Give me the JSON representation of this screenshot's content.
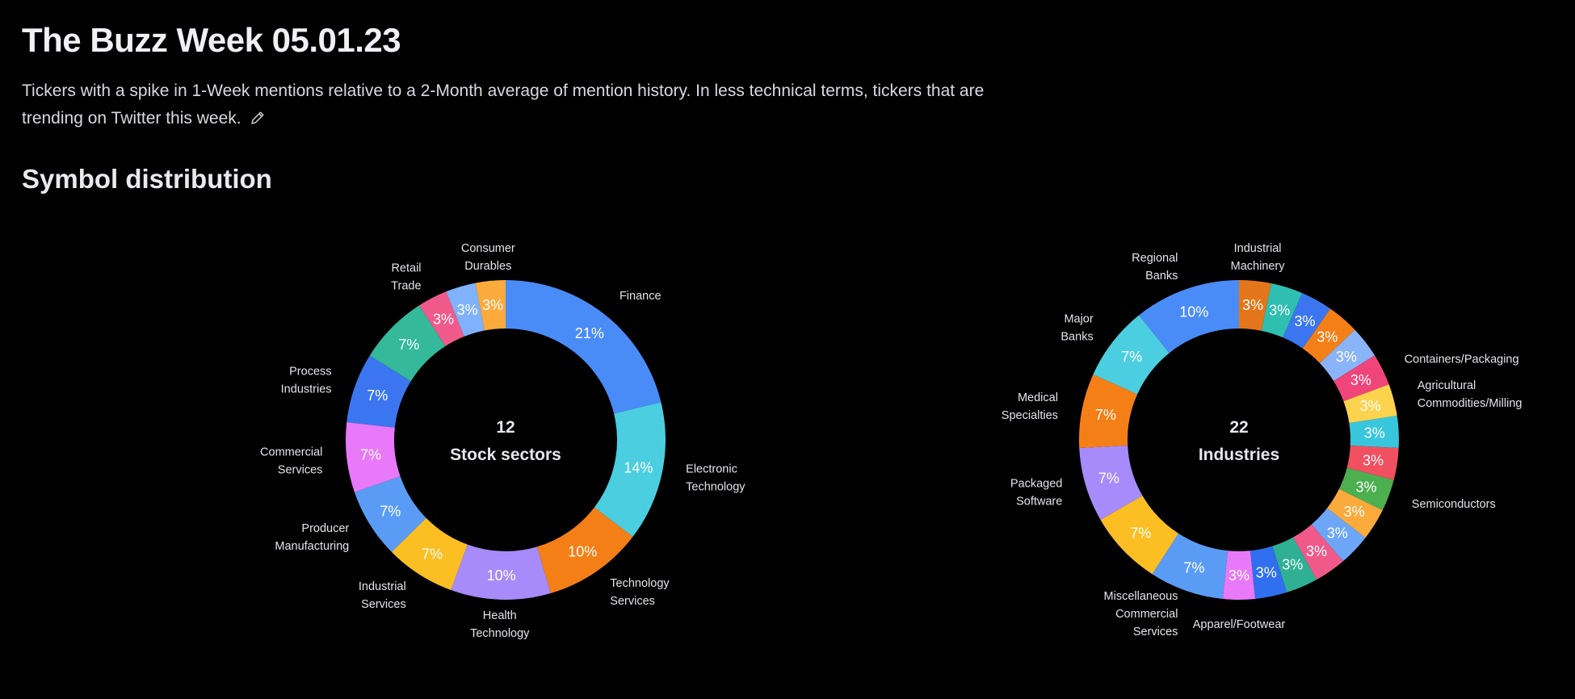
{
  "header": {
    "title": "The Buzz Week 05.01.23",
    "description": "Tickers with a spike in 1-Week mentions relative to a 2-Month average of mention history. In less technical terms, tickers that are trending on Twitter this week."
  },
  "section": {
    "title": "Symbol distribution"
  },
  "icons": {
    "edit": "pencil-icon"
  },
  "chart_data": [
    {
      "type": "pie",
      "center_count": "12",
      "center_label": "Stock sectors",
      "slices": [
        {
          "label": "Finance",
          "value": 21,
          "pct": "21%",
          "color": "#4a8cf7"
        },
        {
          "label": "Electronic Technology",
          "value": 14,
          "pct": "14%",
          "color": "#4bcfe0"
        },
        {
          "label": "Technology Services",
          "value": 10,
          "pct": "10%",
          "color": "#f57f17"
        },
        {
          "label": "Health Technology",
          "value": 10,
          "pct": "10%",
          "color": "#a78bfa"
        },
        {
          "label": "Industrial Services",
          "value": 7,
          "pct": "7%",
          "color": "#fbbf24"
        },
        {
          "label": "Producer Manufacturing",
          "value": 7,
          "pct": "7%",
          "color": "#5a9cf5"
        },
        {
          "label": "Commercial Services",
          "value": 7,
          "pct": "7%",
          "color": "#e879f9"
        },
        {
          "label": "Process Industries",
          "value": 7,
          "pct": "7%",
          "color": "#3b76f0"
        },
        {
          "label": "",
          "value": 7,
          "pct": "7%",
          "color": "#34b99a"
        },
        {
          "label": "Retail Trade",
          "value": 3,
          "pct": "3%",
          "color": "#f05a8a"
        },
        {
          "label": "",
          "value": 3,
          "pct": "3%",
          "color": "#7fb2fa"
        },
        {
          "label": "Consumer Durables",
          "value": 3,
          "pct": "3%",
          "color": "#fbaa3c"
        }
      ]
    },
    {
      "type": "pie",
      "center_count": "22",
      "center_label": "Industries",
      "slices": [
        {
          "label": "Industrial Machinery",
          "value": 3,
          "pct": "3%",
          "color": "#e3761a"
        },
        {
          "label": "",
          "value": 3,
          "pct": "3%",
          "color": "#2fbfb0"
        },
        {
          "label": "",
          "value": 3,
          "pct": "3%",
          "color": "#3b76f0"
        },
        {
          "label": "",
          "value": 3,
          "pct": "3%",
          "color": "#f57f17"
        },
        {
          "label": "",
          "value": 3,
          "pct": "3%",
          "color": "#8ab4f8"
        },
        {
          "label": "Containers/Packaging",
          "value": 3,
          "pct": "3%",
          "color": "#f0457a"
        },
        {
          "label": "Agricultural Commodities/Milling",
          "value": 3,
          "pct": "3%",
          "color": "#fcd34d"
        },
        {
          "label": "",
          "value": 3,
          "pct": "3%",
          "color": "#38c6dc"
        },
        {
          "label": "",
          "value": 3,
          "pct": "3%",
          "color": "#f05060"
        },
        {
          "label": "Semiconductors",
          "value": 3,
          "pct": "3%",
          "color": "#4caf50"
        },
        {
          "label": "",
          "value": 3,
          "pct": "3%",
          "color": "#fbaa3c"
        },
        {
          "label": "",
          "value": 3,
          "pct": "3%",
          "color": "#6ea6f7"
        },
        {
          "label": "",
          "value": 3,
          "pct": "3%",
          "color": "#f05a8a"
        },
        {
          "label": "",
          "value": 3,
          "pct": "3%",
          "color": "#2fb094"
        },
        {
          "label": "",
          "value": 3,
          "pct": "3%",
          "color": "#2f6ff0"
        },
        {
          "label": "Apparel/Footwear",
          "value": 3,
          "pct": "3%",
          "color": "#e879f9"
        },
        {
          "label": "Miscellaneous Commercial Services",
          "value": 7,
          "pct": "7%",
          "color": "#5a9cf5"
        },
        {
          "label": "",
          "value": 7,
          "pct": "7%",
          "color": "#fbbf24"
        },
        {
          "label": "Packaged Software",
          "value": 7,
          "pct": "7%",
          "color": "#a78bfa"
        },
        {
          "label": "Medical Specialties",
          "value": 7,
          "pct": "7%",
          "color": "#f57f17"
        },
        {
          "label": "Major Banks",
          "value": 7,
          "pct": "7%",
          "color": "#4bcfe0"
        },
        {
          "label": "Regional Banks",
          "value": 10,
          "pct": "10%",
          "color": "#4a8cf7"
        }
      ]
    }
  ]
}
